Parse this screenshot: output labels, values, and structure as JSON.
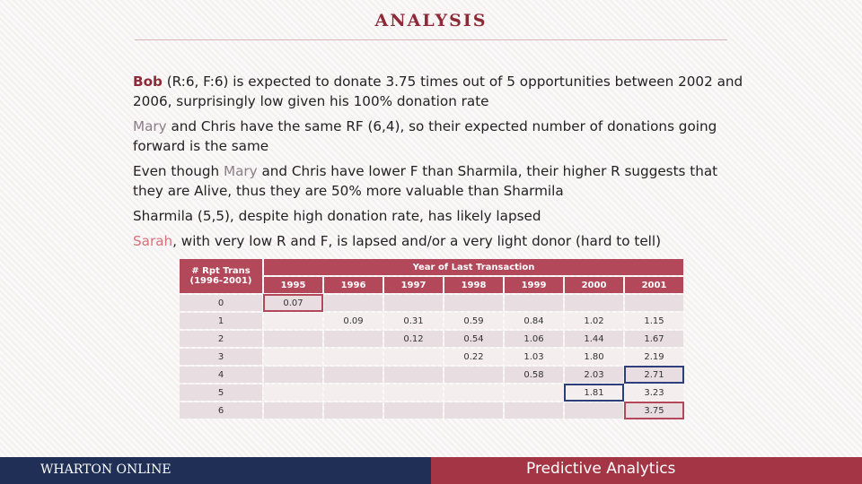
{
  "title": "ANALYSIS",
  "bullets": {
    "b1_name": "Bob",
    "b1_text": " (R:6, F:6) is expected to donate 3.75 times out of 5  opportunities between 2002 and 2006, surprisingly low given his 100% donation rate",
    "b2_name": "Mary",
    "b2_text": " and Chris have the same RF (6,4), so their expected number of donations going forward is the same",
    "b3_pre": "Even though ",
    "b3_name": "Mary",
    "b3_text": " and Chris have lower F than Sharmila, their higher R suggests that they are Alive, thus they are 50% more valuable than Sharmila",
    "b4_text": "Sharmila (5,5), despite high donation rate, has likely lapsed",
    "b5_name": "Sarah",
    "b5_text": ", with very low R and F, is lapsed and/or a very light donor (hard to tell)"
  },
  "table": {
    "row_header_line1": "# Rpt Trans",
    "row_header_line2": "(1996-2001)",
    "col_group_header": "Year of Last Transaction",
    "years": [
      "1995",
      "1996",
      "1997",
      "1998",
      "1999",
      "2000",
      "2001"
    ],
    "rows": [
      {
        "label": "0",
        "cells": [
          "0.07",
          "",
          "",
          "",
          "",
          "",
          ""
        ]
      },
      {
        "label": "1",
        "cells": [
          "",
          "0.09",
          "0.31",
          "0.59",
          "0.84",
          "1.02",
          "1.15"
        ]
      },
      {
        "label": "2",
        "cells": [
          "",
          "",
          "0.12",
          "0.54",
          "1.06",
          "1.44",
          "1.67"
        ]
      },
      {
        "label": "3",
        "cells": [
          "",
          "",
          "",
          "0.22",
          "1.03",
          "1.80",
          "2.19"
        ]
      },
      {
        "label": "4",
        "cells": [
          "",
          "",
          "",
          "",
          "0.58",
          "2.03",
          "2.71"
        ]
      },
      {
        "label": "5",
        "cells": [
          "",
          "",
          "",
          "",
          "",
          "1.81",
          "3.23"
        ]
      },
      {
        "label": "6",
        "cells": [
          "",
          "",
          "",
          "",
          "",
          "",
          "3.75"
        ]
      }
    ]
  },
  "footer": {
    "left": "WHARTON ONLINE",
    "right": "Predictive Analytics"
  },
  "colors": {
    "accent": "#a33544",
    "navy": "#1f2f55",
    "highlight_blue": "#2d3e7a"
  }
}
